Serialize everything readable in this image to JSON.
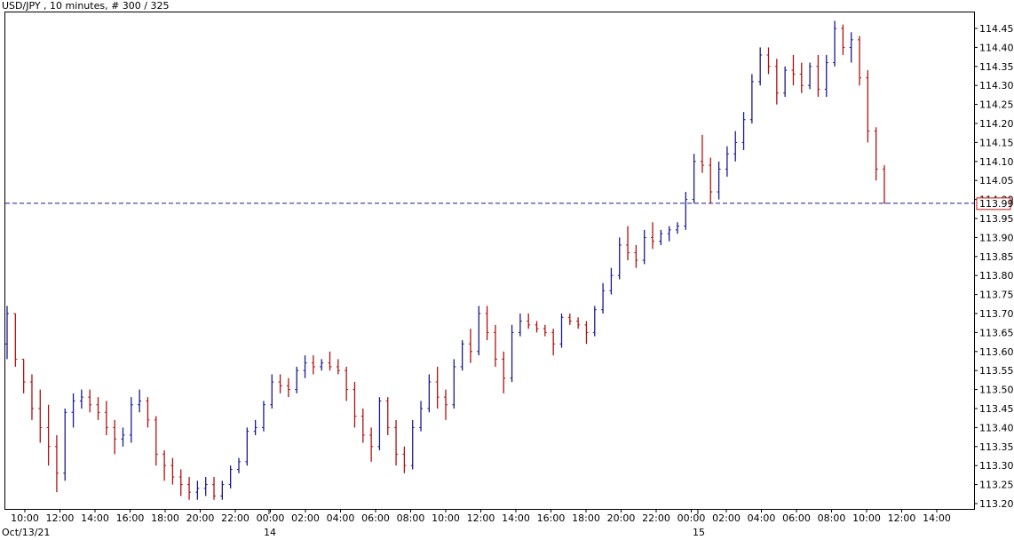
{
  "chart_data": {
    "type": "ohlc",
    "title": "USD/JPY , 10 minutes, # 300 / 325",
    "last_price": "113.99",
    "ylim": [
      113.2,
      114.47
    ],
    "yticks": [
      "114.45",
      "114.40",
      "114.35",
      "114.30",
      "114.25",
      "114.20",
      "114.15",
      "114.10",
      "114.05",
      "114.00",
      "113.95",
      "113.90",
      "113.85",
      "113.80",
      "113.75",
      "113.70",
      "113.65",
      "113.60",
      "113.55",
      "113.50",
      "113.45",
      "113.40",
      "113.35",
      "113.30",
      "113.25",
      "113.20"
    ],
    "xticks": [
      "10:00",
      "12:00",
      "14:00",
      "16:00",
      "18:00",
      "20:00",
      "22:00",
      "00:00",
      "02:00",
      "04:00",
      "06:00",
      "08:00",
      "10:00",
      "12:00",
      "14:00",
      "16:00",
      "18:00",
      "20:00",
      "22:00",
      "00:00",
      "02:00",
      "04:00",
      "06:00",
      "08:00",
      "10:00",
      "12:00",
      "14:00"
    ],
    "date_labels": [
      "Oct/13/21",
      "14",
      "15"
    ],
    "colors": {
      "up": "#1a1a8c",
      "down": "#b01010",
      "last_line": "#1a1a8c",
      "last_box": "#d01010"
    },
    "bars": [
      [
        113.62,
        113.72,
        113.58,
        113.7
      ],
      [
        113.7,
        113.7,
        113.56,
        113.58
      ],
      [
        113.58,
        113.58,
        113.49,
        113.52
      ],
      [
        113.52,
        113.54,
        113.42,
        113.45
      ],
      [
        113.45,
        113.5,
        113.36,
        113.4
      ],
      [
        113.4,
        113.46,
        113.3,
        113.35
      ],
      [
        113.35,
        113.38,
        113.23,
        113.28
      ],
      [
        113.28,
        113.45,
        113.26,
        113.44
      ],
      [
        113.44,
        113.49,
        113.4,
        113.47
      ],
      [
        113.47,
        113.5,
        113.45,
        113.48
      ],
      [
        113.48,
        113.5,
        113.44,
        113.46
      ],
      [
        113.46,
        113.48,
        113.42,
        113.44
      ],
      [
        113.44,
        113.47,
        113.38,
        113.4
      ],
      [
        113.4,
        113.42,
        113.33,
        113.37
      ],
      [
        113.37,
        113.4,
        113.35,
        113.38
      ],
      [
        113.38,
        113.48,
        113.36,
        113.46
      ],
      [
        113.46,
        113.5,
        113.44,
        113.47
      ],
      [
        113.47,
        113.48,
        113.4,
        113.42
      ],
      [
        113.42,
        113.43,
        113.3,
        113.33
      ],
      [
        113.33,
        113.34,
        113.26,
        113.3
      ],
      [
        113.3,
        113.32,
        113.25,
        113.27
      ],
      [
        113.27,
        113.29,
        113.22,
        113.25
      ],
      [
        113.25,
        113.27,
        113.21,
        113.23
      ],
      [
        113.23,
        113.26,
        113.21,
        113.24
      ],
      [
        113.24,
        113.27,
        113.22,
        113.25
      ],
      [
        113.25,
        113.27,
        113.21,
        113.22
      ],
      [
        113.22,
        113.26,
        113.21,
        113.25
      ],
      [
        113.25,
        113.3,
        113.24,
        113.29
      ],
      [
        113.29,
        113.32,
        113.28,
        113.31
      ],
      [
        113.31,
        113.4,
        113.3,
        113.39
      ],
      [
        113.39,
        113.42,
        113.38,
        113.4
      ],
      [
        113.4,
        113.47,
        113.39,
        113.46
      ],
      [
        113.46,
        113.54,
        113.45,
        113.52
      ],
      [
        113.52,
        113.54,
        113.49,
        113.51
      ],
      [
        113.51,
        113.53,
        113.48,
        113.5
      ],
      [
        113.5,
        113.56,
        113.49,
        113.55
      ],
      [
        113.55,
        113.59,
        113.53,
        113.57
      ],
      [
        113.57,
        113.59,
        113.54,
        113.56
      ],
      [
        113.56,
        113.58,
        113.55,
        113.57
      ],
      [
        113.57,
        113.6,
        113.55,
        113.56
      ],
      [
        113.56,
        113.58,
        113.54,
        113.55
      ],
      [
        113.55,
        113.56,
        113.47,
        113.5
      ],
      [
        113.5,
        113.52,
        113.4,
        113.43
      ],
      [
        113.43,
        113.45,
        113.36,
        113.38
      ],
      [
        113.38,
        113.4,
        113.31,
        113.35
      ],
      [
        113.35,
        113.48,
        113.34,
        113.47
      ],
      [
        113.47,
        113.48,
        113.38,
        113.4
      ],
      [
        113.4,
        113.42,
        113.3,
        113.33
      ],
      [
        113.33,
        113.35,
        113.28,
        113.3
      ],
      [
        113.3,
        113.42,
        113.29,
        113.4
      ],
      [
        113.4,
        113.47,
        113.39,
        113.45
      ],
      [
        113.45,
        113.54,
        113.44,
        113.52
      ],
      [
        113.52,
        113.56,
        113.45,
        113.48
      ],
      [
        113.48,
        113.5,
        113.42,
        113.46
      ],
      [
        113.46,
        113.58,
        113.45,
        113.56
      ],
      [
        113.56,
        113.63,
        113.55,
        113.62
      ],
      [
        113.62,
        113.66,
        113.57,
        113.6
      ],
      [
        113.6,
        113.72,
        113.59,
        113.7
      ],
      [
        113.7,
        113.72,
        113.63,
        113.65
      ],
      [
        113.65,
        113.67,
        113.56,
        113.58
      ],
      [
        113.58,
        113.6,
        113.49,
        113.53
      ],
      [
        113.53,
        113.67,
        113.52,
        113.65
      ],
      [
        113.65,
        113.7,
        113.64,
        113.68
      ],
      [
        113.68,
        113.7,
        113.66,
        113.67
      ],
      [
        113.67,
        113.68,
        113.65,
        113.66
      ],
      [
        113.66,
        113.67,
        113.64,
        113.65
      ],
      [
        113.65,
        113.66,
        113.59,
        113.62
      ],
      [
        113.62,
        113.7,
        113.61,
        113.69
      ],
      [
        113.69,
        113.7,
        113.67,
        113.68
      ],
      [
        113.68,
        113.69,
        113.66,
        113.67
      ],
      [
        113.67,
        113.68,
        113.62,
        113.65
      ],
      [
        113.65,
        113.72,
        113.64,
        113.71
      ],
      [
        113.71,
        113.78,
        113.7,
        113.76
      ],
      [
        113.76,
        113.82,
        113.75,
        113.8
      ],
      [
        113.8,
        113.9,
        113.79,
        113.88
      ],
      [
        113.88,
        113.93,
        113.84,
        113.86
      ],
      [
        113.86,
        113.88,
        113.82,
        113.84
      ],
      [
        113.84,
        113.92,
        113.83,
        113.9
      ],
      [
        113.9,
        113.94,
        113.87,
        113.89
      ],
      [
        113.89,
        113.92,
        113.88,
        113.91
      ],
      [
        113.91,
        113.93,
        113.89,
        113.92
      ],
      [
        113.92,
        113.94,
        113.91,
        113.93
      ],
      [
        113.93,
        114.02,
        113.92,
        114.0
      ],
      [
        114.0,
        114.12,
        113.99,
        114.1
      ],
      [
        114.1,
        114.17,
        114.07,
        114.09
      ],
      [
        114.09,
        114.11,
        113.99,
        114.02
      ],
      [
        114.02,
        114.1,
        114.0,
        114.08
      ],
      [
        114.08,
        114.14,
        114.06,
        114.12
      ],
      [
        114.12,
        114.18,
        114.1,
        114.15
      ],
      [
        114.15,
        114.23,
        114.13,
        114.21
      ],
      [
        114.21,
        114.33,
        114.2,
        114.31
      ],
      [
        114.31,
        114.4,
        114.3,
        114.38
      ],
      [
        114.38,
        114.4,
        114.33,
        114.35
      ],
      [
        114.35,
        114.37,
        114.25,
        114.28
      ],
      [
        114.28,
        114.35,
        114.27,
        114.34
      ],
      [
        114.34,
        114.38,
        114.3,
        114.33
      ],
      [
        114.33,
        114.36,
        114.28,
        114.3
      ],
      [
        114.3,
        114.36,
        114.29,
        114.35
      ],
      [
        114.35,
        114.38,
        114.27,
        114.29
      ],
      [
        114.29,
        114.38,
        114.27,
        114.36
      ],
      [
        114.36,
        114.47,
        114.35,
        114.45
      ],
      [
        114.45,
        114.46,
        114.38,
        114.4
      ],
      [
        114.4,
        114.44,
        114.36,
        114.42
      ],
      [
        114.42,
        114.43,
        114.3,
        114.32
      ],
      [
        114.32,
        114.34,
        114.15,
        114.18
      ],
      [
        114.18,
        114.19,
        114.05,
        114.08
      ],
      [
        114.08,
        114.09,
        113.99,
        113.99
      ]
    ]
  }
}
